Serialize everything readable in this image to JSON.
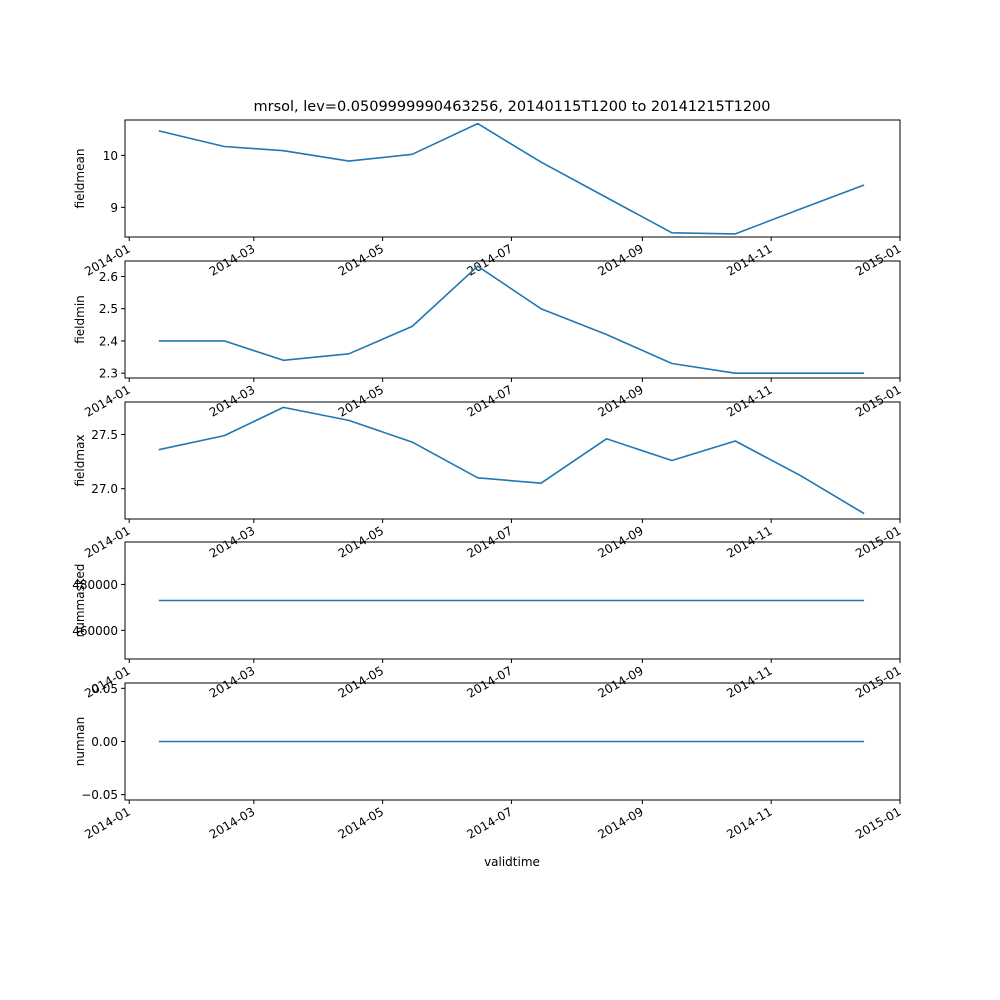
{
  "title": "mrsol, lev=0.0509999990463256, 20140115T1200 to 20141215T1200",
  "xlabel": "validtime",
  "x_ticks": [
    "2014-01",
    "2014-03",
    "2014-05",
    "2014-07",
    "2014-09",
    "2014-11",
    "2015-01"
  ],
  "line_color": "#1f77b4",
  "chart_data": [
    {
      "type": "line",
      "ylabel": "fieldmean",
      "x": [
        "2014-01-15",
        "2014-02-15",
        "2014-03-15",
        "2014-04-15",
        "2014-05-15",
        "2014-06-15",
        "2014-07-15",
        "2014-08-15",
        "2014-09-15",
        "2014-10-15",
        "2014-11-15",
        "2014-12-15"
      ],
      "y": [
        10.47,
        10.17,
        10.09,
        9.89,
        10.02,
        10.61,
        9.87,
        9.19,
        8.51,
        8.49,
        8.97,
        9.43
      ],
      "ylim": [
        8.43,
        10.68
      ],
      "yticks": [
        9,
        10
      ],
      "ytick_labels": [
        "9",
        "10"
      ]
    },
    {
      "type": "line",
      "ylabel": "fieldmin",
      "x": [
        "2014-01-15",
        "2014-02-15",
        "2014-03-15",
        "2014-04-15",
        "2014-05-15",
        "2014-06-15",
        "2014-07-15",
        "2014-08-15",
        "2014-09-15",
        "2014-10-15",
        "2014-11-15",
        "2014-12-15"
      ],
      "y": [
        2.4,
        2.4,
        2.34,
        2.36,
        2.445,
        2.632,
        2.5,
        2.42,
        2.33,
        2.3,
        2.3,
        2.3
      ],
      "ylim": [
        2.285,
        2.648
      ],
      "yticks": [
        2.3,
        2.4,
        2.5,
        2.6
      ],
      "ytick_labels": [
        "2.3",
        "2.4",
        "2.5",
        "2.6"
      ]
    },
    {
      "type": "line",
      "ylabel": "fieldmax",
      "x": [
        "2014-01-15",
        "2014-02-15",
        "2014-03-15",
        "2014-04-15",
        "2014-05-15",
        "2014-06-15",
        "2014-07-15",
        "2014-08-15",
        "2014-09-15",
        "2014-10-15",
        "2014-11-15",
        "2014-12-15"
      ],
      "y": [
        27.36,
        27.49,
        27.75,
        27.63,
        27.43,
        27.1,
        27.05,
        27.46,
        27.26,
        27.44,
        27.12,
        26.77
      ],
      "ylim": [
        26.72,
        27.8
      ],
      "yticks": [
        27.0,
        27.5
      ],
      "ytick_labels": [
        "27.0",
        "27.5"
      ]
    },
    {
      "type": "line",
      "ylabel": "nummasked",
      "x": [
        "2014-01-15",
        "2014-02-15",
        "2014-03-15",
        "2014-04-15",
        "2014-05-15",
        "2014-06-15",
        "2014-07-15",
        "2014-08-15",
        "2014-09-15",
        "2014-10-15",
        "2014-11-15",
        "2014-12-15"
      ],
      "y": [
        473000,
        473000,
        473000,
        473000,
        473000,
        473000,
        473000,
        473000,
        473000,
        473000,
        473000,
        473000
      ],
      "ylim": [
        447500,
        498500
      ],
      "yticks": [
        460000,
        480000
      ],
      "ytick_labels": [
        "460000",
        "480000"
      ]
    },
    {
      "type": "line",
      "ylabel": "numnan",
      "x": [
        "2014-01-15",
        "2014-02-15",
        "2014-03-15",
        "2014-04-15",
        "2014-05-15",
        "2014-06-15",
        "2014-07-15",
        "2014-08-15",
        "2014-09-15",
        "2014-10-15",
        "2014-11-15",
        "2014-12-15"
      ],
      "y": [
        0,
        0,
        0,
        0,
        0,
        0,
        0,
        0,
        0,
        0,
        0,
        0
      ],
      "ylim": [
        -0.055,
        0.055
      ],
      "yticks": [
        -0.05,
        0.0,
        0.05
      ],
      "ytick_labels": [
        "−0.05",
        "0.00",
        "0.05"
      ]
    }
  ]
}
